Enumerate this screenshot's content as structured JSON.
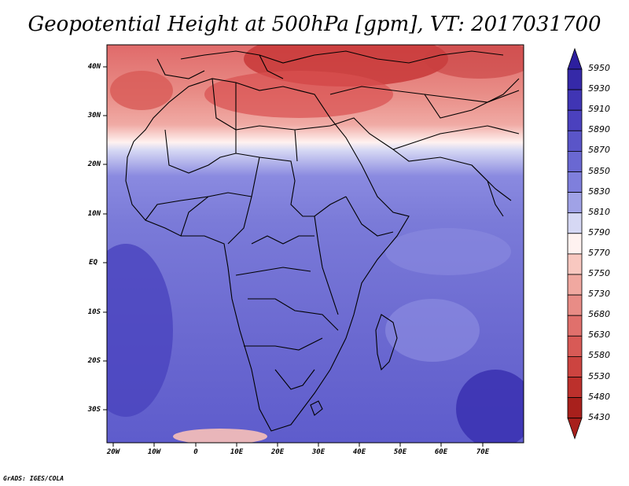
{
  "title": "Geopotential Height at 500hPa [gpm], VT: 2017031700",
  "footer": "GrADS: IGES/COLA",
  "lat_labels": [
    "40N",
    "30N",
    "20N",
    "10N",
    "EQ",
    "10S",
    "20S",
    "30S"
  ],
  "lon_labels": [
    "20W",
    "10W",
    "0",
    "10E",
    "20E",
    "30E",
    "40E",
    "50E",
    "60E",
    "70E"
  ],
  "colorbar": {
    "levels": [
      "5950",
      "5930",
      "5910",
      "5890",
      "5870",
      "5850",
      "5830",
      "5810",
      "5790",
      "5770",
      "5750",
      "5730",
      "5680",
      "5630",
      "5580",
      "5530",
      "5480",
      "5430"
    ],
    "colors": [
      "#2d1f9e",
      "#3529a8",
      "#4035b4",
      "#4b41be",
      "#5a55c8",
      "#6a68d2",
      "#7f7fdc",
      "#a0a2e6",
      "#d6d8f4",
      "#fff2f0",
      "#f8c8c0",
      "#f0a8a0",
      "#e88c86",
      "#e0706c",
      "#d85a56",
      "#cc4440",
      "#bc302c",
      "#a8201c"
    ]
  }
}
